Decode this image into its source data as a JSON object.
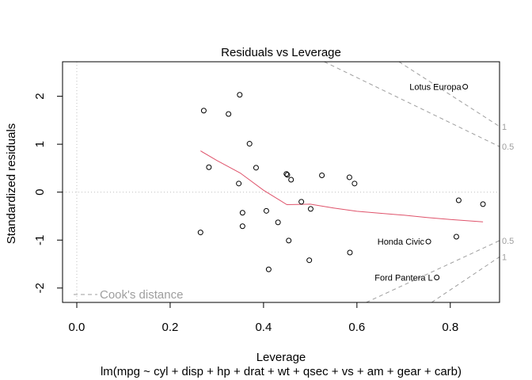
{
  "chart_data": {
    "type": "scatter",
    "title": "Residuals vs Leverage",
    "xlabel": "Leverage",
    "sublabel": "lm(mpg ~ cyl + disp + hp + drat + wt + qsec + vs + am + gear + carb)",
    "ylabel": "Standardized residuals",
    "xlim": [
      -0.0305,
      0.9055
    ],
    "ylim": [
      -2.3,
      2.72
    ],
    "x_ticks": [
      0.0,
      0.2,
      0.4,
      0.6,
      0.8
    ],
    "x_tick_labels": [
      "0.0",
      "0.2",
      "0.4",
      "0.6",
      "0.8"
    ],
    "y_ticks": [
      -2,
      -1,
      0,
      1,
      2
    ],
    "y_tick_labels": [
      "-2",
      "-1",
      "0",
      "1",
      "2"
    ],
    "grid": false,
    "points": [
      {
        "x": 0.265,
        "y": -0.84
      },
      {
        "x": 0.272,
        "y": 1.7
      },
      {
        "x": 0.283,
        "y": 0.52
      },
      {
        "x": 0.325,
        "y": 1.63
      },
      {
        "x": 0.347,
        "y": 0.18
      },
      {
        "x": 0.349,
        "y": 2.03
      },
      {
        "x": 0.355,
        "y": -0.43
      },
      {
        "x": 0.355,
        "y": -0.71
      },
      {
        "x": 0.37,
        "y": 1.01
      },
      {
        "x": 0.384,
        "y": 0.51
      },
      {
        "x": 0.406,
        "y": -0.39
      },
      {
        "x": 0.411,
        "y": -1.61
      },
      {
        "x": 0.431,
        "y": -0.63
      },
      {
        "x": 0.449,
        "y": 0.38
      },
      {
        "x": 0.451,
        "y": 0.36
      },
      {
        "x": 0.454,
        "y": -1.01
      },
      {
        "x": 0.459,
        "y": 0.26
      },
      {
        "x": 0.481,
        "y": -0.2
      },
      {
        "x": 0.498,
        "y": -1.42
      },
      {
        "x": 0.501,
        "y": -0.35
      },
      {
        "x": 0.525,
        "y": 0.35
      },
      {
        "x": 0.584,
        "y": 0.31
      },
      {
        "x": 0.585,
        "y": -1.26
      },
      {
        "x": 0.595,
        "y": 0.18
      },
      {
        "x": 0.753,
        "y": -1.03,
        "label": "Honda Civic"
      },
      {
        "x": 0.771,
        "y": -1.78,
        "label": "Ford Pantera L"
      },
      {
        "x": 0.813,
        "y": -0.93
      },
      {
        "x": 0.818,
        "y": -0.17
      },
      {
        "x": 0.832,
        "y": 2.2,
        "label": "Lotus Europa"
      },
      {
        "x": 0.87,
        "y": -0.25
      }
    ],
    "smooth_line": {
      "color": "#df536b",
      "x": [
        0.265,
        0.3,
        0.35,
        0.4,
        0.45,
        0.5,
        0.55,
        0.6,
        0.65,
        0.7,
        0.75,
        0.8,
        0.87
      ],
      "y": [
        0.86,
        0.66,
        0.4,
        0.04,
        -0.26,
        -0.25,
        -0.33,
        -0.4,
        -0.44,
        -0.48,
        -0.53,
        -0.57,
        -0.62
      ]
    },
    "reference_lines": {
      "h": 0,
      "v": 0,
      "style": "dotted",
      "color": "#bebebe"
    },
    "cooks_distance": {
      "legend": "Cook's distance",
      "legend_position": "bottom-left",
      "color": "#9e9e9e",
      "contours": [
        {
          "label": "0.5",
          "upper": {
            "x": [
              0.53,
              0.9055
            ],
            "y": [
              2.72,
              0.95
            ]
          },
          "lower": {
            "x": [
              0.62,
              0.9055
            ],
            "y": [
              -2.3,
              -1.01
            ]
          }
        },
        {
          "label": "1",
          "upper": {
            "x": [
              0.69,
              0.9055
            ],
            "y": [
              2.72,
              1.37
            ]
          },
          "lower": {
            "x": [
              0.76,
              0.9055
            ],
            "y": [
              -2.3,
              -1.35
            ]
          }
        }
      ]
    }
  }
}
